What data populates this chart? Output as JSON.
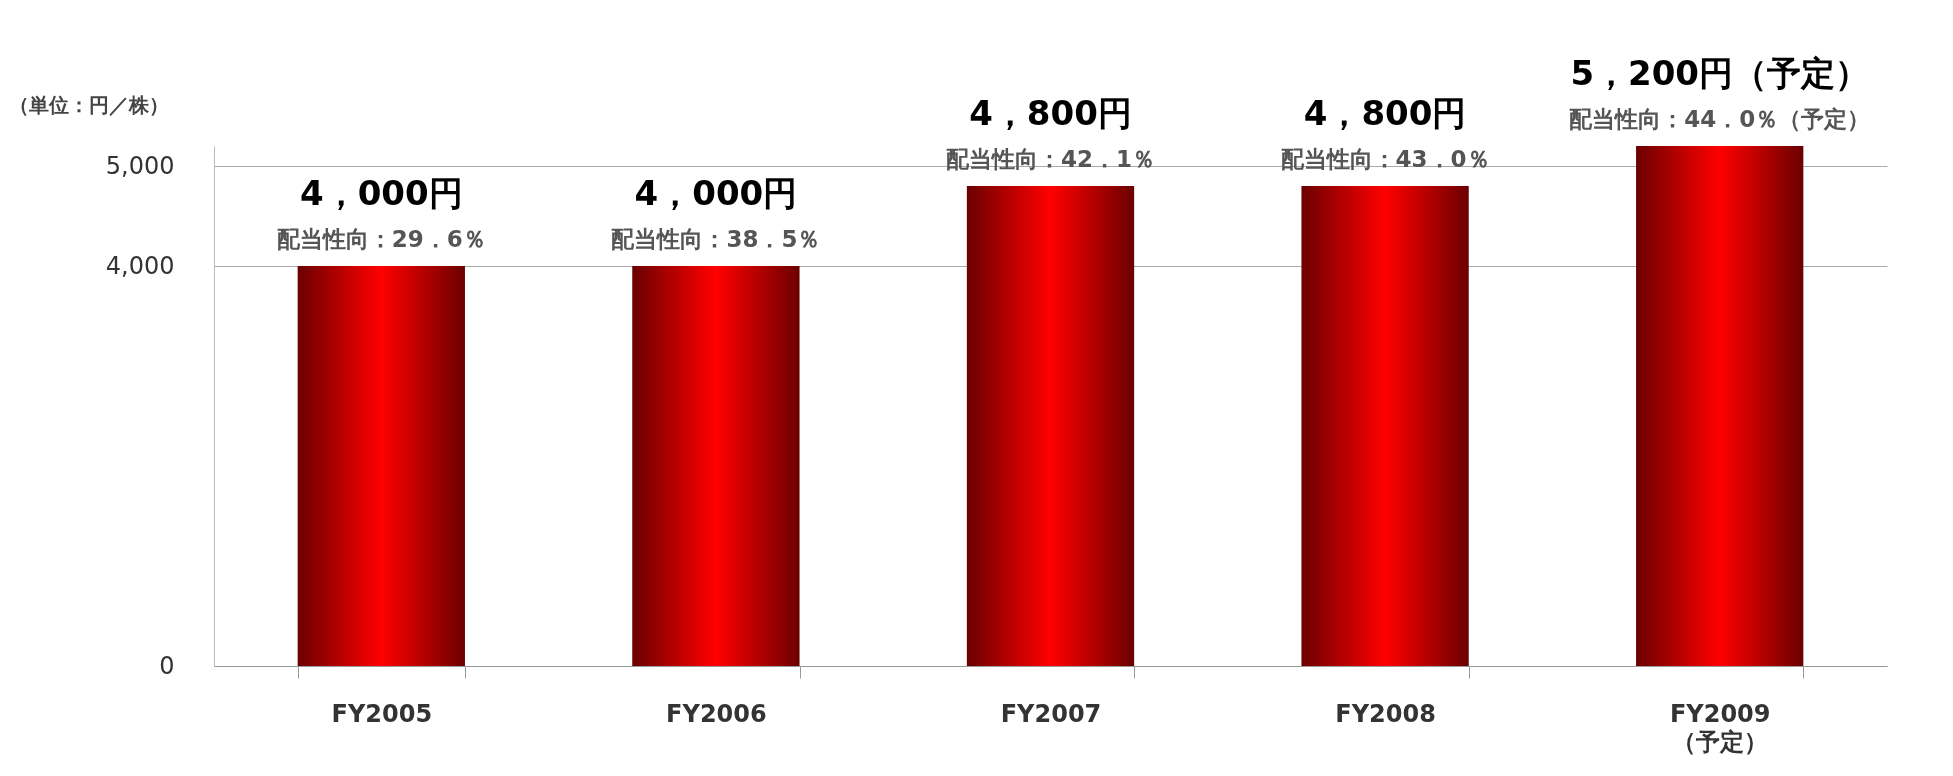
{
  "chart_data": {
    "type": "bar",
    "categories": [
      "FY2005",
      "FY2006",
      "FY2007",
      "FY2008",
      "FY2009\n（予定）"
    ],
    "series": [
      {
        "color": "#ff0000",
        "values": [
          4000,
          4000,
          4800,
          4800,
          5200
        ]
      }
    ],
    "annotations": [
      "（単位：円／株）",
      {
        "text": "4，000円",
        "x": "FY2005",
        "y": 4000
      },
      {
        "text": "配当性向：29．6％",
        "x": "FY2005",
        "y": 4000
      },
      {
        "text": "4，000円",
        "x": "FY2006",
        "y": 4000
      },
      {
        "text": "配当性向：38．5％",
        "x": "FY2006",
        "y": 4000
      },
      {
        "text": "4，800円",
        "x": "FY2007",
        "y": 4800
      },
      {
        "text": "配当性向：42．1％",
        "x": "FY2007",
        "y": 4800
      },
      {
        "text": "4，800円",
        "x": "FY2008",
        "y": 4800
      },
      {
        "text": "配当性向：43．0％",
        "x": "FY2008",
        "y": 4800
      },
      {
        "text": "5，200円（予定）",
        "x": "FY2009\n（予定）",
        "y": 5200
      },
      {
        "text": "配当性向：44．0％（予定）",
        "x": "FY2009\n（予定）",
        "y": 5200
      }
    ],
    "ylim": [
      0,
      5200
    ],
    "yticks": [
      0,
      {
        "value": 4000,
        "label": "4,000"
      },
      {
        "value": 5000,
        "label": "5,000"
      }
    ],
    "grid": "y"
  }
}
